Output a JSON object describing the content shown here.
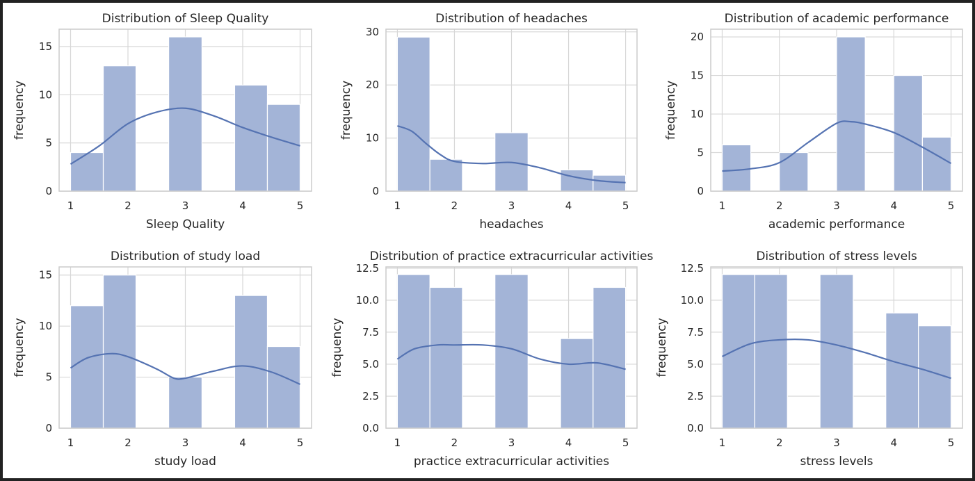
{
  "colors": {
    "bar_fill": "#a3b4d7",
    "bar_stroke": "#ffffff",
    "kde_line": "#5573b2",
    "grid": "#d7d7d7",
    "frame": "#cccccc",
    "background": "#ffffff"
  },
  "chart_data": [
    {
      "type": "bar",
      "title": "Distribution of Sleep Quality",
      "xlabel": "Sleep Quality",
      "ylabel": "frequency",
      "xlim": [
        0.8,
        5.2
      ],
      "ylim": [
        0,
        16.8
      ],
      "xticks": [
        1,
        2,
        3,
        4,
        5
      ],
      "xtick_labels": [
        "1",
        "2",
        "3",
        "4",
        "5"
      ],
      "yticks": [
        0,
        5,
        10,
        15
      ],
      "ytick_labels": [
        "0",
        "5",
        "10",
        "15"
      ],
      "grid": true,
      "bins": [
        [
          1.0,
          1.57
        ],
        [
          1.57,
          2.14
        ],
        [
          2.14,
          2.71
        ],
        [
          2.71,
          3.29
        ],
        [
          3.29,
          3.86
        ],
        [
          3.86,
          4.43
        ],
        [
          4.43,
          5.0
        ]
      ],
      "values": [
        4,
        13,
        0,
        16,
        0,
        11,
        9
      ],
      "kde": [
        [
          1.0,
          2.8
        ],
        [
          1.5,
          4.7
        ],
        [
          2.0,
          7.0
        ],
        [
          2.5,
          8.2
        ],
        [
          3.0,
          8.6
        ],
        [
          3.5,
          7.8
        ],
        [
          4.0,
          6.6
        ],
        [
          4.5,
          5.6
        ],
        [
          5.0,
          4.7
        ]
      ]
    },
    {
      "type": "bar",
      "title": "Distribution of headaches",
      "xlabel": "headaches",
      "ylabel": "frequency",
      "xlim": [
        0.8,
        5.2
      ],
      "ylim": [
        0,
        30.5
      ],
      "xticks": [
        1,
        2,
        3,
        4,
        5
      ],
      "xtick_labels": [
        "1",
        "2",
        "3",
        "4",
        "5"
      ],
      "yticks": [
        0,
        10,
        20,
        30
      ],
      "ytick_labels": [
        "0",
        "10",
        "20",
        "30"
      ],
      "grid": true,
      "bins": [
        [
          1.0,
          1.57
        ],
        [
          1.57,
          2.14
        ],
        [
          2.14,
          2.71
        ],
        [
          2.71,
          3.29
        ],
        [
          3.29,
          3.86
        ],
        [
          3.86,
          4.43
        ],
        [
          4.43,
          5.0
        ]
      ],
      "values": [
        29,
        6,
        0,
        11,
        0,
        4,
        3
      ],
      "kde": [
        [
          1.0,
          12.3
        ],
        [
          1.25,
          11.3
        ],
        [
          1.5,
          9.0
        ],
        [
          1.75,
          6.9
        ],
        [
          2.0,
          5.6
        ],
        [
          2.5,
          5.2
        ],
        [
          3.0,
          5.4
        ],
        [
          3.5,
          4.4
        ],
        [
          4.0,
          2.9
        ],
        [
          4.5,
          2.0
        ],
        [
          5.0,
          1.6
        ]
      ]
    },
    {
      "type": "bar",
      "title": "Distribution of academic performance",
      "xlabel": "academic performance",
      "ylabel": "frequency",
      "xlim": [
        0.8,
        5.2
      ],
      "ylim": [
        0,
        21
      ],
      "xticks": [
        1,
        2,
        3,
        4,
        5
      ],
      "xtick_labels": [
        "1",
        "2",
        "3",
        "4",
        "5"
      ],
      "yticks": [
        0,
        5,
        10,
        15,
        20
      ],
      "ytick_labels": [
        "0",
        "5",
        "10",
        "15",
        "20"
      ],
      "grid": true,
      "bins": [
        [
          1.0,
          1.5
        ],
        [
          1.5,
          2.0
        ],
        [
          2.0,
          2.5
        ],
        [
          2.5,
          3.0
        ],
        [
          3.0,
          3.5
        ],
        [
          3.5,
          4.0
        ],
        [
          4.0,
          4.5
        ],
        [
          4.5,
          5.0
        ]
      ],
      "values": [
        6,
        0,
        5,
        0,
        20,
        0,
        15,
        7
      ],
      "kde": [
        [
          1.0,
          2.6
        ],
        [
          1.5,
          2.9
        ],
        [
          2.0,
          3.7
        ],
        [
          2.5,
          6.3
        ],
        [
          3.0,
          8.8
        ],
        [
          3.25,
          9.0
        ],
        [
          3.5,
          8.7
        ],
        [
          4.0,
          7.6
        ],
        [
          4.5,
          5.7
        ],
        [
          5.0,
          3.6
        ]
      ]
    },
    {
      "type": "bar",
      "title": "Distribution of study load",
      "xlabel": "study load",
      "ylabel": "frequency",
      "xlim": [
        0.8,
        5.2
      ],
      "ylim": [
        0,
        15.8
      ],
      "xticks": [
        1,
        2,
        3,
        4,
        5
      ],
      "xtick_labels": [
        "1",
        "2",
        "3",
        "4",
        "5"
      ],
      "yticks": [
        0,
        5,
        10,
        15
      ],
      "ytick_labels": [
        "0",
        "5",
        "10",
        "15"
      ],
      "grid": true,
      "bins": [
        [
          1.0,
          1.57
        ],
        [
          1.57,
          2.14
        ],
        [
          2.14,
          2.71
        ],
        [
          2.71,
          3.29
        ],
        [
          3.29,
          3.86
        ],
        [
          3.86,
          4.43
        ],
        [
          4.43,
          5.0
        ]
      ],
      "values": [
        12,
        15,
        0,
        5,
        0,
        13,
        8
      ],
      "kde": [
        [
          1.0,
          5.9
        ],
        [
          1.3,
          6.9
        ],
        [
          1.7,
          7.3
        ],
        [
          2.0,
          7.0
        ],
        [
          2.5,
          5.8
        ],
        [
          2.8,
          4.9
        ],
        [
          3.0,
          4.9
        ],
        [
          3.5,
          5.6
        ],
        [
          4.0,
          6.1
        ],
        [
          4.5,
          5.5
        ],
        [
          5.0,
          4.3
        ]
      ]
    },
    {
      "type": "bar",
      "title": "Distribution of practice extracurricular activities",
      "xlabel": "practice extracurricular activities",
      "ylabel": "frequency",
      "xlim": [
        0.8,
        5.2
      ],
      "ylim": [
        0,
        12.6
      ],
      "xticks": [
        1,
        2,
        3,
        4,
        5
      ],
      "xtick_labels": [
        "1",
        "2",
        "3",
        "4",
        "5"
      ],
      "yticks": [
        0,
        2.5,
        5,
        7.5,
        10,
        12.5
      ],
      "ytick_labels": [
        "0.0",
        "2.5",
        "5.0",
        "7.5",
        "10.0",
        "12.5"
      ],
      "grid": true,
      "bins": [
        [
          1.0,
          1.57
        ],
        [
          1.57,
          2.14
        ],
        [
          2.14,
          2.71
        ],
        [
          2.71,
          3.29
        ],
        [
          3.29,
          3.86
        ],
        [
          3.86,
          4.43
        ],
        [
          4.43,
          5.0
        ]
      ],
      "values": [
        12,
        11,
        0,
        12,
        0,
        7,
        11
      ],
      "kde": [
        [
          1.0,
          5.4
        ],
        [
          1.3,
          6.2
        ],
        [
          1.7,
          6.5
        ],
        [
          2.0,
          6.5
        ],
        [
          2.5,
          6.5
        ],
        [
          3.0,
          6.2
        ],
        [
          3.5,
          5.4
        ],
        [
          4.0,
          5.0
        ],
        [
          4.5,
          5.1
        ],
        [
          5.0,
          4.6
        ]
      ]
    },
    {
      "type": "bar",
      "title": "Distribution of stress levels",
      "xlabel": "stress levels",
      "ylabel": "frequency",
      "xlim": [
        0.8,
        5.2
      ],
      "ylim": [
        0,
        12.6
      ],
      "xticks": [
        1,
        2,
        3,
        4,
        5
      ],
      "xtick_labels": [
        "1",
        "2",
        "3",
        "4",
        "5"
      ],
      "yticks": [
        0,
        2.5,
        5,
        7.5,
        10,
        12.5
      ],
      "ytick_labels": [
        "0.0",
        "2.5",
        "5.0",
        "7.5",
        "10.0",
        "12.5"
      ],
      "grid": true,
      "bins": [
        [
          1.0,
          1.57
        ],
        [
          1.57,
          2.14
        ],
        [
          2.14,
          2.71
        ],
        [
          2.71,
          3.29
        ],
        [
          3.29,
          3.86
        ],
        [
          3.86,
          4.43
        ],
        [
          4.43,
          5.0
        ]
      ],
      "values": [
        12,
        12,
        0,
        12,
        0,
        9,
        8
      ],
      "kde": [
        [
          1.0,
          5.6
        ],
        [
          1.5,
          6.6
        ],
        [
          2.0,
          6.9
        ],
        [
          2.5,
          6.9
        ],
        [
          3.0,
          6.5
        ],
        [
          3.5,
          5.9
        ],
        [
          4.0,
          5.2
        ],
        [
          4.5,
          4.6
        ],
        [
          5.0,
          3.9
        ]
      ]
    }
  ]
}
